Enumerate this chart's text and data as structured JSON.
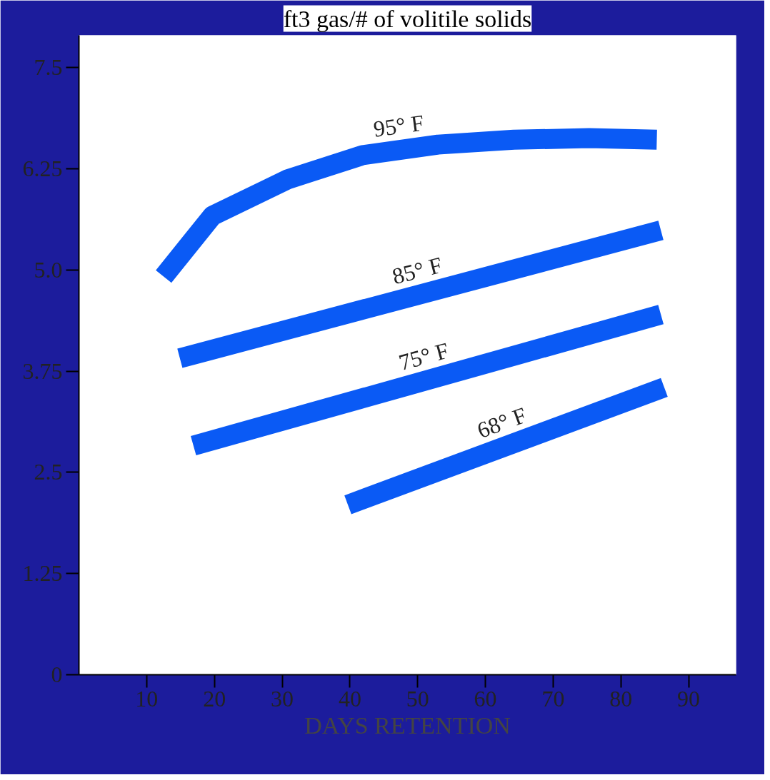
{
  "chart_data": {
    "type": "line",
    "title": "ft3 gas/# of volitile solids",
    "xlabel": "DAYS RETENTION",
    "xlim": [
      0,
      97
    ],
    "ylim": [
      0,
      7.9
    ],
    "xticks": [
      10,
      20,
      30,
      40,
      50,
      60,
      70,
      80,
      90
    ],
    "yticks": [
      0,
      1.25,
      2.5,
      3.75,
      {
        "value": 5,
        "label": "5.0"
      },
      6.25,
      7.5
    ],
    "grid": false,
    "marker": "none",
    "line_style": "solid",
    "series": [
      {
        "name": "95° F",
        "color": "#0a5af5",
        "x": [
          12.5,
          19.7,
          30.8,
          41.9,
          53,
          64.2,
          75.3,
          85.3
        ],
        "values": [
          4.92,
          5.67,
          6.12,
          6.42,
          6.55,
          6.61,
          6.63,
          6.61
        ]
      },
      {
        "name": "85° F",
        "color": "#0a5af5",
        "x": [
          14.9,
          85.9
        ],
        "values": [
          3.91,
          5.49
        ]
      },
      {
        "name": "75° F",
        "color": "#0a5af5",
        "x": [
          16.9,
          85.9
        ],
        "values": [
          2.83,
          4.45
        ]
      },
      {
        "name": "68° F",
        "color": "#0a5af5",
        "x": [
          39.7,
          86.4
        ],
        "values": [
          2.1,
          3.55
        ]
      }
    ]
  }
}
